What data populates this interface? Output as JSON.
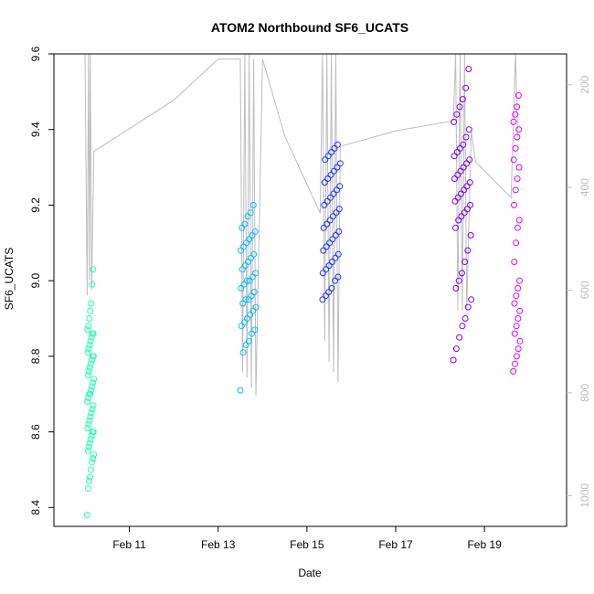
{
  "chart_data": {
    "type": "scatter",
    "title": "ATOM2 Northbound SF6_UCATS",
    "xlabel": "Date",
    "ylabel": "SF6_UCATS",
    "x_ticks": [
      "Feb 11",
      "Feb 13",
      "Feb 15",
      "Feb 17",
      "Feb 19"
    ],
    "x_tick_days": [
      11,
      13,
      15,
      17,
      19
    ],
    "xlim_days": [
      9.3,
      20.85
    ],
    "ylim": [
      8.35,
      9.6
    ],
    "y_ticks": [
      8.4,
      8.6,
      8.8,
      9.0,
      9.2,
      9.4,
      9.6
    ],
    "right_axis": {
      "color": "#bdbdbd",
      "reversed": true,
      "ticks": [
        200,
        400,
        600,
        800,
        1000
      ],
      "range": [
        140,
        1060
      ]
    },
    "series": [
      {
        "color": "#1effb4",
        "x_range_days": [
          10.05,
          10.2
        ],
        "values": [
          8.38,
          8.45,
          8.47,
          8.48,
          8.5,
          8.52,
          8.53,
          8.54,
          8.55,
          8.56,
          8.57,
          8.58,
          8.59,
          8.6,
          8.6,
          8.61,
          8.62,
          8.63,
          8.64,
          8.65,
          8.66,
          8.67,
          8.68,
          8.69,
          8.7,
          8.7,
          8.71,
          8.72,
          8.73,
          8.74,
          8.75,
          8.76,
          8.77,
          8.78,
          8.79,
          8.8,
          8.8,
          8.81,
          8.82,
          8.83,
          8.84,
          8.85,
          8.86,
          8.86,
          8.87,
          8.88,
          8.9,
          8.92,
          8.94,
          8.99,
          9.03
        ]
      },
      {
        "color": "#00bfff",
        "x_range_days": [
          13.5,
          13.85
        ],
        "values": [
          8.71,
          8.81,
          8.83,
          8.84,
          8.86,
          8.87,
          8.88,
          8.89,
          8.9,
          8.91,
          8.92,
          8.93,
          8.94,
          8.95,
          8.95,
          8.96,
          8.97,
          8.98,
          8.99,
          9.0,
          9.0,
          9.01,
          9.02,
          9.03,
          9.04,
          9.05,
          9.06,
          9.07,
          9.08,
          9.09,
          9.1,
          9.11,
          9.12,
          9.13,
          9.14,
          9.15,
          9.17,
          9.18,
          9.2
        ]
      },
      {
        "color": "#1e32ff",
        "x_range_days": [
          15.35,
          15.75
        ],
        "values": [
          8.95,
          8.96,
          8.97,
          8.98,
          9.0,
          9.01,
          9.02,
          9.03,
          9.04,
          9.05,
          9.06,
          9.07,
          9.08,
          9.09,
          9.1,
          9.11,
          9.12,
          9.13,
          9.14,
          9.15,
          9.16,
          9.17,
          9.18,
          9.19,
          9.2,
          9.21,
          9.22,
          9.23,
          9.24,
          9.25,
          9.26,
          9.27,
          9.28,
          9.29,
          9.3,
          9.31,
          9.32,
          9.33,
          9.34,
          9.35,
          9.36
        ]
      },
      {
        "color": "#7800f5",
        "x_range_days": [
          18.3,
          18.7
        ],
        "values": [
          8.79,
          8.82,
          8.85,
          8.88,
          8.9,
          8.93,
          8.95,
          8.98,
          9.0,
          9.02,
          9.05,
          9.08,
          9.12,
          9.14,
          9.16,
          9.17,
          9.18,
          9.19,
          9.2,
          9.21,
          9.22,
          9.23,
          9.24,
          9.25,
          9.26,
          9.27,
          9.28,
          9.29,
          9.3,
          9.31,
          9.32,
          9.33,
          9.34,
          9.35,
          9.36,
          9.38,
          9.4,
          9.42,
          9.44,
          9.46,
          9.48,
          9.51,
          9.56
        ]
      },
      {
        "color": "#e600ff",
        "x_range_days": [
          19.65,
          19.8
        ],
        "values": [
          8.76,
          8.78,
          8.8,
          8.82,
          8.84,
          8.86,
          8.88,
          8.9,
          8.92,
          8.94,
          8.96,
          8.98,
          9.0,
          9.05,
          9.1,
          9.14,
          9.16,
          9.2,
          9.24,
          9.27,
          9.3,
          9.32,
          9.35,
          9.38,
          9.4,
          9.42,
          9.44,
          9.46,
          9.49
        ]
      }
    ],
    "pressure_trace_hpa": [
      [
        10.0,
        140
      ],
      [
        10.05,
        610
      ],
      [
        10.08,
        140
      ],
      [
        10.1,
        580
      ],
      [
        10.12,
        140
      ],
      [
        10.15,
        600
      ],
      [
        10.2,
        330
      ],
      [
        12.0,
        230
      ],
      [
        13.0,
        150
      ],
      [
        13.5,
        150
      ],
      [
        13.55,
        760
      ],
      [
        13.6,
        140
      ],
      [
        13.65,
        770
      ],
      [
        13.7,
        140
      ],
      [
        13.75,
        790
      ],
      [
        13.8,
        150
      ],
      [
        13.85,
        805
      ],
      [
        14.0,
        150
      ],
      [
        14.5,
        300
      ],
      [
        15.3,
        450
      ],
      [
        15.35,
        140
      ],
      [
        15.4,
        700
      ],
      [
        15.45,
        140
      ],
      [
        15.5,
        740
      ],
      [
        15.55,
        140
      ],
      [
        15.6,
        760
      ],
      [
        15.65,
        140
      ],
      [
        15.7,
        780
      ],
      [
        15.75,
        320
      ],
      [
        17.0,
        290
      ],
      [
        18.3,
        270
      ],
      [
        18.35,
        140
      ],
      [
        18.4,
        640
      ],
      [
        18.45,
        140
      ],
      [
        18.5,
        640
      ],
      [
        18.55,
        140
      ],
      [
        18.6,
        640
      ],
      [
        18.7,
        290
      ],
      [
        18.8,
        350
      ],
      [
        19.6,
        420
      ],
      [
        19.7,
        140
      ],
      [
        19.75,
        300
      ]
    ]
  }
}
